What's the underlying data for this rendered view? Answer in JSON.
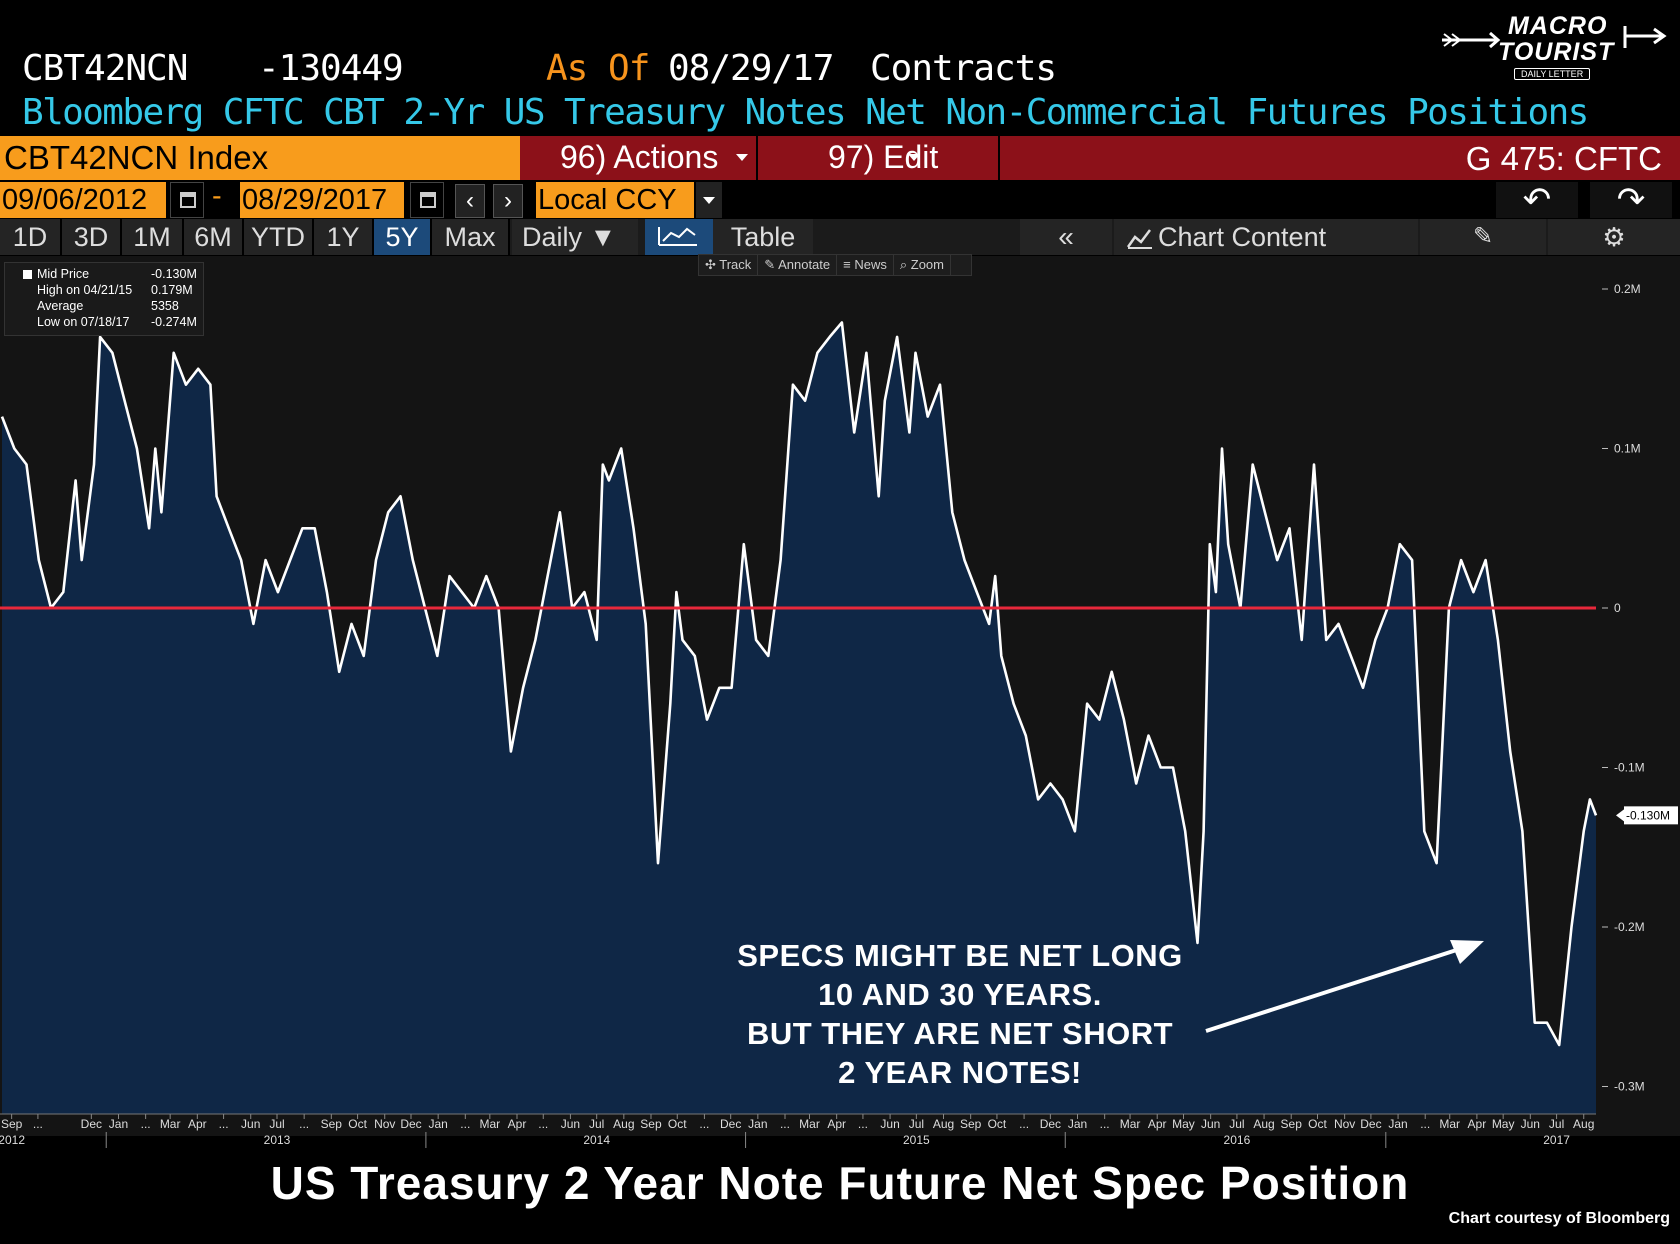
{
  "header": {
    "ticker": "CBT42NCN",
    "value": "-130449",
    "as_of_label": "As Of",
    "as_of_date": "08/29/17",
    "units": "Contracts",
    "description": "Bloomberg CFTC CBT 2-Yr US Treasury Notes Net Non-Commercial Futures Positions"
  },
  "logo": {
    "line1": "MACRO",
    "line2": "TOURIST",
    "line3": "DAILY LETTER"
  },
  "toolbar": {
    "ticker_field": "CBT42NCN Index",
    "actions": "96) Actions",
    "edit": "97) Edit",
    "function_code": "G 475: CFTC",
    "start_date": "09/06/2012",
    "dash": "-",
    "end_date": "08/29/2017",
    "prev": "‹",
    "next": "›",
    "currency": "Local CCY",
    "undo": "↶",
    "redo": "↷"
  },
  "ranges": [
    "1D",
    "3D",
    "1M",
    "6M",
    "YTD",
    "1Y",
    "5Y",
    "Max"
  ],
  "selected_range": "5Y",
  "frequency": "Daily ▼",
  "view_tabs": {
    "chart": "chart-icon",
    "table": "Table"
  },
  "right_controls": {
    "collapse": "«",
    "chart_content": "Chart Content",
    "edit": "✎",
    "settings": "⚙"
  },
  "chart_tools": [
    "✣ Track",
    "✎ Annotate",
    "≡ News",
    "⌕ Zoom"
  ],
  "legend": [
    {
      "key": "Mid Price",
      "value": "-0.130M"
    },
    {
      "key": "High on 04/21/15",
      "value": "0.179M"
    },
    {
      "key": "Average",
      "value": "5358"
    },
    {
      "key": "Low on 07/18/17",
      "value": "-0.274M"
    }
  ],
  "annotation": [
    "SPECS MIGHT BE NET LONG",
    "10 AND 30 YEARS.",
    "BUT THEY ARE NET SHORT",
    "2 YEAR NOTES!"
  ],
  "footer_title": "US Treasury 2 Year Note Future Net Spec Position",
  "credit": "Chart courtesy of Bloomberg",
  "colors": {
    "line": "#ffffff",
    "fill": "#0f2746",
    "zero_line": "#e8283b",
    "accent": "#f89c1c",
    "cyan": "#35c8e8"
  },
  "chart_data": {
    "type": "area",
    "y_unit": "M",
    "ylim": [
      -0.32,
      0.22
    ],
    "y_ticks": [
      0.2,
      0.1,
      0,
      -0.1,
      -0.2,
      -0.3
    ],
    "y_tick_labels": [
      "0.2M",
      "0.1M",
      "0",
      "-0.1M",
      "-0.2M",
      "-0.3M"
    ],
    "last_value_label": "-0.130M",
    "reference_line": 0,
    "x_start": "2012-09-04",
    "x_end": "2017-08-29",
    "x_month_labels": [
      [
        "2012-09",
        "Sep"
      ],
      [
        "2012-10",
        "..."
      ],
      [
        "2012-12",
        "Dec"
      ],
      [
        "2013-01",
        "Jan"
      ],
      [
        "2013-02",
        "..."
      ],
      [
        "2013-03",
        "Mar"
      ],
      [
        "2013-04",
        "Apr"
      ],
      [
        "2013-05",
        "..."
      ],
      [
        "2013-06",
        "Jun"
      ],
      [
        "2013-07",
        "Jul"
      ],
      [
        "2013-08",
        "..."
      ],
      [
        "2013-09",
        "Sep"
      ],
      [
        "2013-10",
        "Oct"
      ],
      [
        "2013-11",
        "Nov"
      ],
      [
        "2013-12",
        "Dec"
      ],
      [
        "2014-01",
        "Jan"
      ],
      [
        "2014-02",
        "..."
      ],
      [
        "2014-03",
        "Mar"
      ],
      [
        "2014-04",
        "Apr"
      ],
      [
        "2014-05",
        "..."
      ],
      [
        "2014-06",
        "Jun"
      ],
      [
        "2014-07",
        "Jul"
      ],
      [
        "2014-08",
        "Aug"
      ],
      [
        "2014-09",
        "Sep"
      ],
      [
        "2014-10",
        "Oct"
      ],
      [
        "2014-11",
        "..."
      ],
      [
        "2014-12",
        "Dec"
      ],
      [
        "2015-01",
        "Jan"
      ],
      [
        "2015-02",
        "..."
      ],
      [
        "2015-03",
        "Mar"
      ],
      [
        "2015-04",
        "Apr"
      ],
      [
        "2015-05",
        "..."
      ],
      [
        "2015-06",
        "Jun"
      ],
      [
        "2015-07",
        "Jul"
      ],
      [
        "2015-08",
        "Aug"
      ],
      [
        "2015-09",
        "Sep"
      ],
      [
        "2015-10",
        "Oct"
      ],
      [
        "2015-11",
        "..."
      ],
      [
        "2015-12",
        "Dec"
      ],
      [
        "2016-01",
        "Jan"
      ],
      [
        "2016-02",
        "..."
      ],
      [
        "2016-03",
        "Mar"
      ],
      [
        "2016-04",
        "Apr"
      ],
      [
        "2016-05",
        "May"
      ],
      [
        "2016-06",
        "Jun"
      ],
      [
        "2016-07",
        "Jul"
      ],
      [
        "2016-08",
        "Aug"
      ],
      [
        "2016-09",
        "Sep"
      ],
      [
        "2016-10",
        "Oct"
      ],
      [
        "2016-11",
        "Nov"
      ],
      [
        "2016-12",
        "Dec"
      ],
      [
        "2017-01",
        "Jan"
      ],
      [
        "2017-02",
        "..."
      ],
      [
        "2017-03",
        "Mar"
      ],
      [
        "2017-04",
        "Apr"
      ],
      [
        "2017-05",
        "May"
      ],
      [
        "2017-06",
        "Jun"
      ],
      [
        "2017-07",
        "Jul"
      ],
      [
        "2017-08",
        "Aug"
      ]
    ],
    "x_year_labels": [
      [
        "2012-09",
        "2012"
      ],
      [
        "2013-07",
        "2013"
      ],
      [
        "2014-07",
        "2014"
      ],
      [
        "2015-07",
        "2015"
      ],
      [
        "2016-07",
        "2016"
      ],
      [
        "2017-07",
        "2017"
      ]
    ],
    "series": [
      {
        "points": [
          [
            "2012-09-04",
            0.12
          ],
          [
            "2012-09-18",
            0.1
          ],
          [
            "2012-10-02",
            0.09
          ],
          [
            "2012-10-16",
            0.03
          ],
          [
            "2012-10-30",
            0.0
          ],
          [
            "2012-11-13",
            0.01
          ],
          [
            "2012-11-27",
            0.08
          ],
          [
            "2012-12-04",
            0.03
          ],
          [
            "2012-12-18",
            0.09
          ],
          [
            "2012-12-25",
            0.17
          ],
          [
            "2013-01-08",
            0.16
          ],
          [
            "2013-01-22",
            0.13
          ],
          [
            "2013-02-05",
            0.1
          ],
          [
            "2013-02-19",
            0.05
          ],
          [
            "2013-02-26",
            0.1
          ],
          [
            "2013-03-05",
            0.06
          ],
          [
            "2013-03-19",
            0.16
          ],
          [
            "2013-04-02",
            0.14
          ],
          [
            "2013-04-16",
            0.15
          ],
          [
            "2013-04-30",
            0.14
          ],
          [
            "2013-05-07",
            0.07
          ],
          [
            "2013-05-21",
            0.05
          ],
          [
            "2013-06-04",
            0.03
          ],
          [
            "2013-06-18",
            -0.01
          ],
          [
            "2013-07-02",
            0.03
          ],
          [
            "2013-07-16",
            0.01
          ],
          [
            "2013-07-30",
            0.03
          ],
          [
            "2013-08-13",
            0.05
          ],
          [
            "2013-08-27",
            0.05
          ],
          [
            "2013-09-10",
            0.01
          ],
          [
            "2013-09-24",
            -0.04
          ],
          [
            "2013-10-08",
            -0.01
          ],
          [
            "2013-10-22",
            -0.03
          ],
          [
            "2013-11-05",
            0.03
          ],
          [
            "2013-11-19",
            0.06
          ],
          [
            "2013-12-03",
            0.07
          ],
          [
            "2013-12-17",
            0.03
          ],
          [
            "2013-12-31",
            0.0
          ],
          [
            "2014-01-14",
            -0.03
          ],
          [
            "2014-01-28",
            0.02
          ],
          [
            "2014-02-11",
            0.01
          ],
          [
            "2014-02-25",
            0.0
          ],
          [
            "2014-03-11",
            0.02
          ],
          [
            "2014-03-25",
            0.0
          ],
          [
            "2014-04-08",
            -0.09
          ],
          [
            "2014-04-22",
            -0.05
          ],
          [
            "2014-05-06",
            -0.02
          ],
          [
            "2014-05-20",
            0.02
          ],
          [
            "2014-06-03",
            0.06
          ],
          [
            "2014-06-17",
            0.0
          ],
          [
            "2014-07-01",
            0.01
          ],
          [
            "2014-07-15",
            -0.02
          ],
          [
            "2014-07-22",
            0.09
          ],
          [
            "2014-07-29",
            0.08
          ],
          [
            "2014-08-12",
            0.1
          ],
          [
            "2014-08-26",
            0.05
          ],
          [
            "2014-09-09",
            -0.01
          ],
          [
            "2014-09-23",
            -0.16
          ],
          [
            "2014-10-07",
            -0.06
          ],
          [
            "2014-10-14",
            0.01
          ],
          [
            "2014-10-21",
            -0.02
          ],
          [
            "2014-11-04",
            -0.03
          ],
          [
            "2014-11-18",
            -0.07
          ],
          [
            "2014-12-02",
            -0.05
          ],
          [
            "2014-12-16",
            -0.05
          ],
          [
            "2014-12-30",
            0.04
          ],
          [
            "2015-01-13",
            -0.02
          ],
          [
            "2015-01-27",
            -0.03
          ],
          [
            "2015-02-10",
            0.03
          ],
          [
            "2015-02-24",
            0.14
          ],
          [
            "2015-03-10",
            0.13
          ],
          [
            "2015-03-24",
            0.16
          ],
          [
            "2015-04-07",
            0.17
          ],
          [
            "2015-04-21",
            0.179
          ],
          [
            "2015-05-05",
            0.11
          ],
          [
            "2015-05-19",
            0.16
          ],
          [
            "2015-06-02",
            0.07
          ],
          [
            "2015-06-09",
            0.13
          ],
          [
            "2015-06-23",
            0.17
          ],
          [
            "2015-07-07",
            0.11
          ],
          [
            "2015-07-14",
            0.16
          ],
          [
            "2015-07-28",
            0.12
          ],
          [
            "2015-08-11",
            0.14
          ],
          [
            "2015-08-25",
            0.06
          ],
          [
            "2015-09-08",
            0.03
          ],
          [
            "2015-09-22",
            0.01
          ],
          [
            "2015-10-06",
            -0.01
          ],
          [
            "2015-10-13",
            0.02
          ],
          [
            "2015-10-20",
            -0.03
          ],
          [
            "2015-11-03",
            -0.06
          ],
          [
            "2015-11-17",
            -0.08
          ],
          [
            "2015-12-01",
            -0.12
          ],
          [
            "2015-12-15",
            -0.11
          ],
          [
            "2015-12-29",
            -0.12
          ],
          [
            "2016-01-12",
            -0.14
          ],
          [
            "2016-01-26",
            -0.06
          ],
          [
            "2016-02-09",
            -0.07
          ],
          [
            "2016-02-23",
            -0.04
          ],
          [
            "2016-03-08",
            -0.07
          ],
          [
            "2016-03-22",
            -0.11
          ],
          [
            "2016-04-05",
            -0.08
          ],
          [
            "2016-04-19",
            -0.1
          ],
          [
            "2016-05-03",
            -0.1
          ],
          [
            "2016-05-17",
            -0.14
          ],
          [
            "2016-05-31",
            -0.21
          ],
          [
            "2016-06-07",
            -0.14
          ],
          [
            "2016-06-14",
            0.04
          ],
          [
            "2016-06-21",
            0.01
          ],
          [
            "2016-06-28",
            0.1
          ],
          [
            "2016-07-05",
            0.04
          ],
          [
            "2016-07-19",
            0.0
          ],
          [
            "2016-08-02",
            0.09
          ],
          [
            "2016-08-16",
            0.06
          ],
          [
            "2016-08-30",
            0.03
          ],
          [
            "2016-09-13",
            0.05
          ],
          [
            "2016-09-27",
            -0.02
          ],
          [
            "2016-10-11",
            0.09
          ],
          [
            "2016-10-25",
            -0.02
          ],
          [
            "2016-11-08",
            -0.01
          ],
          [
            "2016-11-22",
            -0.03
          ],
          [
            "2016-12-06",
            -0.05
          ],
          [
            "2016-12-20",
            -0.02
          ],
          [
            "2017-01-03",
            0.0
          ],
          [
            "2017-01-17",
            0.04
          ],
          [
            "2017-01-31",
            0.03
          ],
          [
            "2017-02-14",
            -0.14
          ],
          [
            "2017-02-28",
            -0.16
          ],
          [
            "2017-03-14",
            0.0
          ],
          [
            "2017-03-28",
            0.03
          ],
          [
            "2017-04-11",
            0.01
          ],
          [
            "2017-04-25",
            0.03
          ],
          [
            "2017-05-09",
            -0.02
          ],
          [
            "2017-05-23",
            -0.09
          ],
          [
            "2017-06-06",
            -0.14
          ],
          [
            "2017-06-20",
            -0.26
          ],
          [
            "2017-07-04",
            -0.26
          ],
          [
            "2017-07-18",
            -0.274
          ],
          [
            "2017-08-01",
            -0.2
          ],
          [
            "2017-08-15",
            -0.14
          ],
          [
            "2017-08-22",
            -0.12
          ],
          [
            "2017-08-29",
            -0.13
          ]
        ]
      }
    ]
  }
}
